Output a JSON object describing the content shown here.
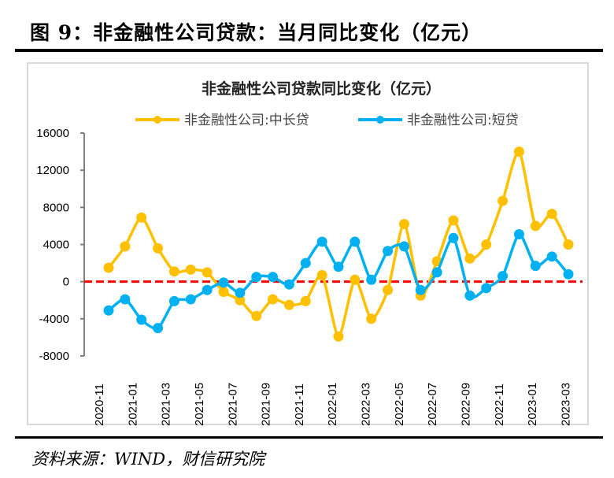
{
  "figure_title": "图 9：非金融性公司贷款：当月同比变化（亿元）",
  "source": "资料来源：WIND，财信研究院",
  "chart_data": {
    "type": "line",
    "title": "非金融性公司贷款同比变化（亿元）",
    "xlabel": "",
    "ylabel": "",
    "ylim": [
      -8000,
      16000
    ],
    "yticks": [
      -8000,
      -4000,
      0,
      4000,
      8000,
      12000,
      16000
    ],
    "ytick_labels": [
      "-8000",
      "-4000",
      "0",
      "4000",
      "8000",
      "12000",
      "16000"
    ],
    "legend_position": "top",
    "categories": [
      "2020-11",
      "2020-12",
      "2021-01",
      "2021-02",
      "2021-03",
      "2021-04",
      "2021-05",
      "2021-06",
      "2021-07",
      "2021-08",
      "2021-09",
      "2021-10",
      "2021-11",
      "2021-12",
      "2022-01",
      "2022-02",
      "2022-03",
      "2022-04",
      "2022-05",
      "2022-06",
      "2022-07",
      "2022-08",
      "2022-09",
      "2022-10",
      "2022-11",
      "2022-12",
      "2023-01",
      "2023-02",
      "2023-03"
    ],
    "xtick_labels": [
      "2020-11",
      "2021-01",
      "2021-03",
      "2021-05",
      "2021-07",
      "2021-09",
      "2021-11",
      "2022-01",
      "2022-03",
      "2022-05",
      "2022-07",
      "2022-09",
      "2022-11",
      "2023-01",
      "2023-03"
    ],
    "reference_line": {
      "y": 0,
      "color": "#ff0000",
      "style": "dashed"
    },
    "series": [
      {
        "name": "非金融性公司:中长贷",
        "color": "#ffc000",
        "values": [
          1500,
          3800,
          6900,
          3600,
          1100,
          1300,
          1000,
          -1100,
          -2000,
          -3700,
          -1900,
          -2500,
          -2100,
          700,
          -5900,
          200,
          -4000,
          -900,
          6200,
          -1500,
          2200,
          6600,
          2500,
          4000,
          8700,
          14000,
          6000,
          7300,
          4000
        ]
      },
      {
        "name": "非金融性公司:短贷",
        "color": "#00b0f0",
        "values": [
          -3100,
          -1900,
          -4100,
          -5000,
          -2100,
          -1900,
          -900,
          -100,
          -1200,
          500,
          500,
          -300,
          2000,
          4300,
          1600,
          4300,
          200,
          3300,
          3800,
          -900,
          1000,
          4700,
          -1500,
          -700,
          600,
          5100,
          1700,
          2700,
          800
        ]
      }
    ]
  }
}
